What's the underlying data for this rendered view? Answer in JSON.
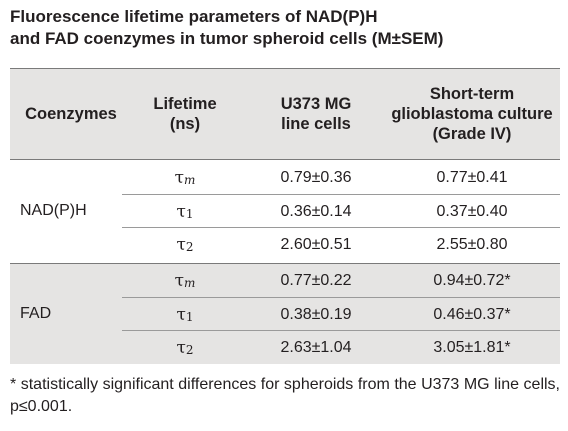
{
  "title": {
    "line1": "Fluorescence lifetime parameters of NAD(P)H",
    "line2": "and FAD coenzymes in tumor spheroid cells (M±SEM)"
  },
  "table": {
    "headers": [
      "Coenzymes",
      "Lifetime\n(ns)",
      "U373 MG\nline cells",
      "Short-term\nglioblastoma culture\n(Grade IV)"
    ],
    "groups": [
      {
        "name": "NAD(P)H",
        "rows": [
          {
            "symbol": "τ",
            "sub": "m",
            "u373": "0.79±0.36",
            "short_term": "0.77±0.41"
          },
          {
            "symbol": "τ",
            "sub": "1",
            "u373": "0.36±0.14",
            "short_term": "0.37±0.40"
          },
          {
            "symbol": "τ",
            "sub": "2",
            "u373": "2.60±0.51",
            "short_term": "2.55±0.80"
          }
        ]
      },
      {
        "name": "FAD",
        "rows": [
          {
            "symbol": "τ",
            "sub": "m",
            "u373": "0.77±0.22",
            "short_term": "0.94±0.72*"
          },
          {
            "symbol": "τ",
            "sub": "1",
            "u373": "0.38±0.19",
            "short_term": "0.46±0.37*"
          },
          {
            "symbol": "τ",
            "sub": "2",
            "u373": "2.63±1.04",
            "short_term": "3.05±1.81*"
          }
        ]
      }
    ]
  },
  "footnote": "* statistically significant differences for spheroids from the U373 MG line cells, p≤0.001."
}
